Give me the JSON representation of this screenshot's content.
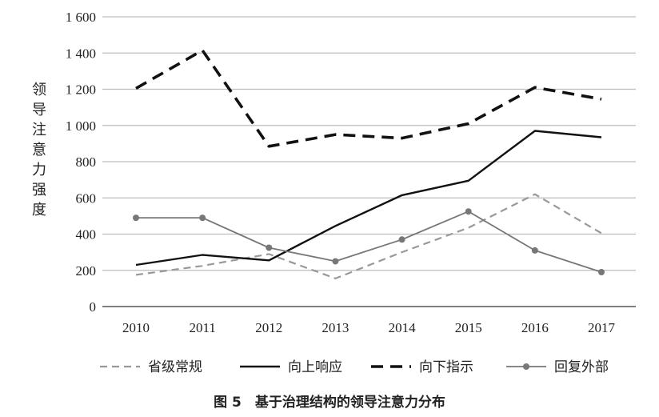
{
  "chart_data": {
    "type": "line",
    "title": "图 5　基于治理结构的领导注意力分布",
    "xlabel": "",
    "ylabel": "领导注意力强度",
    "x": [
      "2010",
      "2011",
      "2012",
      "2013",
      "2014",
      "2015",
      "2016",
      "2017"
    ],
    "ylim": [
      0,
      1600
    ],
    "yticks": [
      0,
      200,
      400,
      600,
      800,
      1000,
      1200,
      1400,
      1600
    ],
    "ytick_labels": [
      "0",
      "200",
      "400",
      "600",
      "800",
      "1 000",
      "1 200",
      "1 400",
      "1 600"
    ],
    "grid": "horizontal",
    "legend_position": "bottom",
    "series": [
      {
        "name": "省级常规",
        "values": [
          175,
          225,
          290,
          155,
          300,
          435,
          620,
          405
        ],
        "color": "#999999",
        "style": "dashed",
        "marker": "none"
      },
      {
        "name": "向上响应",
        "values": [
          230,
          285,
          255,
          445,
          615,
          695,
          970,
          935
        ],
        "color": "#111111",
        "style": "solid",
        "marker": "none"
      },
      {
        "name": "向下指示",
        "values": [
          1205,
          1415,
          885,
          950,
          930,
          1010,
          1210,
          1145
        ],
        "color": "#111111",
        "style": "bold-dashed",
        "marker": "none"
      },
      {
        "name": "回复外部",
        "values": [
          490,
          490,
          325,
          250,
          370,
          525,
          310,
          190
        ],
        "color": "#777777",
        "style": "solid",
        "marker": "circle"
      }
    ]
  }
}
